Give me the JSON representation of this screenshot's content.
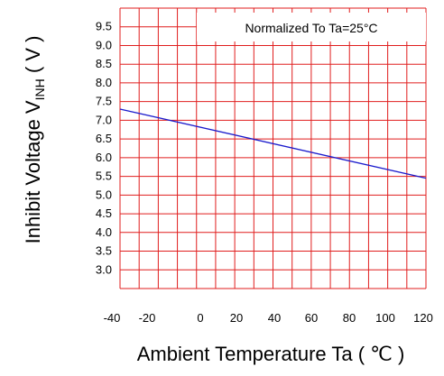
{
  "chart_data": {
    "type": "line",
    "title": "",
    "annotation": "Normalized To Ta=25°C",
    "xlabel": "Ambient Temperature Ta ( ℃ )",
    "ylabel_main": "Inhibit Voltage V",
    "ylabel_subscript": "INH",
    "ylabel_unit": " ( V )",
    "x_ticks": [
      "-40",
      "-20",
      "0",
      "20",
      "40",
      "60",
      "80",
      "100",
      "120"
    ],
    "y_ticks": [
      "9.5",
      "9.0",
      "8.5",
      "8.0",
      "7.5",
      "7.0",
      "6.5",
      "6.0",
      "5.5",
      "5.0",
      "4.5",
      "4.0",
      "3.5",
      "3.0"
    ],
    "xlim": [
      -40,
      110
    ],
    "ylim": [
      2.5,
      10.0
    ],
    "grid": true,
    "grid_color": "#e01e1e",
    "series": [
      {
        "color": "#1a1acc",
        "x": [
          -40,
          110
        ],
        "y": [
          7.3,
          5.45
        ]
      }
    ]
  }
}
